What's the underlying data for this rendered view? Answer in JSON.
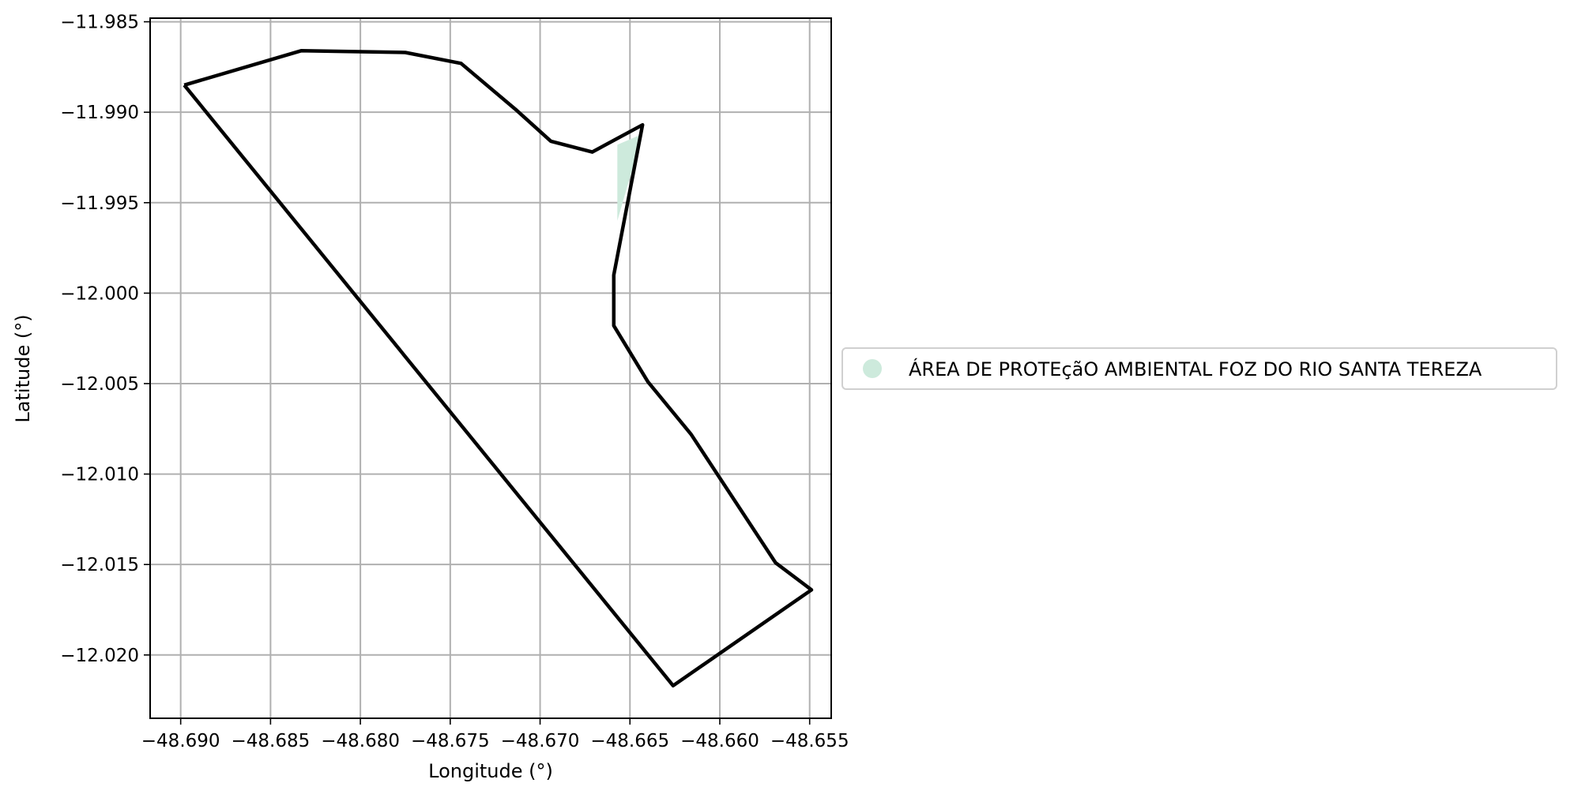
{
  "chart_data": {
    "type": "map",
    "title": "",
    "xlabel": "Longitude (°)",
    "ylabel": "Latitude (°)",
    "xlim": [
      -48.6917,
      -48.6538
    ],
    "ylim": [
      -12.0235,
      -11.9848
    ],
    "xticks": [
      -48.69,
      -48.685,
      -48.68,
      -48.675,
      -48.67,
      -48.665,
      -48.66,
      -48.655
    ],
    "xtick_labels": [
      "−48.690",
      "−48.685",
      "−48.680",
      "−48.675",
      "−48.670",
      "−48.665",
      "−48.660",
      "−48.655"
    ],
    "yticks": [
      -11.985,
      -11.99,
      -11.995,
      -12.0,
      -12.005,
      -12.01,
      -12.015,
      -12.02
    ],
    "ytick_labels": [
      "−11.985",
      "−11.990",
      "−11.995",
      "−12.000",
      "−12.005",
      "−12.010",
      "−12.015",
      "−12.020"
    ],
    "grid": true,
    "legend_position": "right",
    "series": [
      {
        "name": "ÁREA DE PROTEçãO AMBIENTAL FOZ DO RIO SANTA TEREZA",
        "color": "#cdeadc",
        "points": [
          [
            -48.6657,
            -11.9918
          ],
          [
            -48.6643,
            -11.9912
          ],
          [
            -48.6657,
            -11.996
          ]
        ]
      }
    ],
    "outline": {
      "color": "#000000",
      "points": [
        [
          -48.6898,
          -11.9885
        ],
        [
          -48.6833,
          -11.9866
        ],
        [
          -48.6775,
          -11.9867
        ],
        [
          -48.6744,
          -11.9873
        ],
        [
          -48.6713,
          -11.9899
        ],
        [
          -48.6694,
          -11.9916
        ],
        [
          -48.6671,
          -11.9922
        ],
        [
          -48.6643,
          -11.9907
        ],
        [
          -48.6659,
          -11.999
        ],
        [
          -48.6659,
          -12.0018
        ],
        [
          -48.664,
          -12.0049
        ],
        [
          -48.6616,
          -12.0078
        ],
        [
          -48.6569,
          -12.0149
        ],
        [
          -48.6549,
          -12.0164
        ],
        [
          -48.6626,
          -12.0217
        ],
        [
          -48.6898,
          -11.9885
        ]
      ]
    }
  }
}
